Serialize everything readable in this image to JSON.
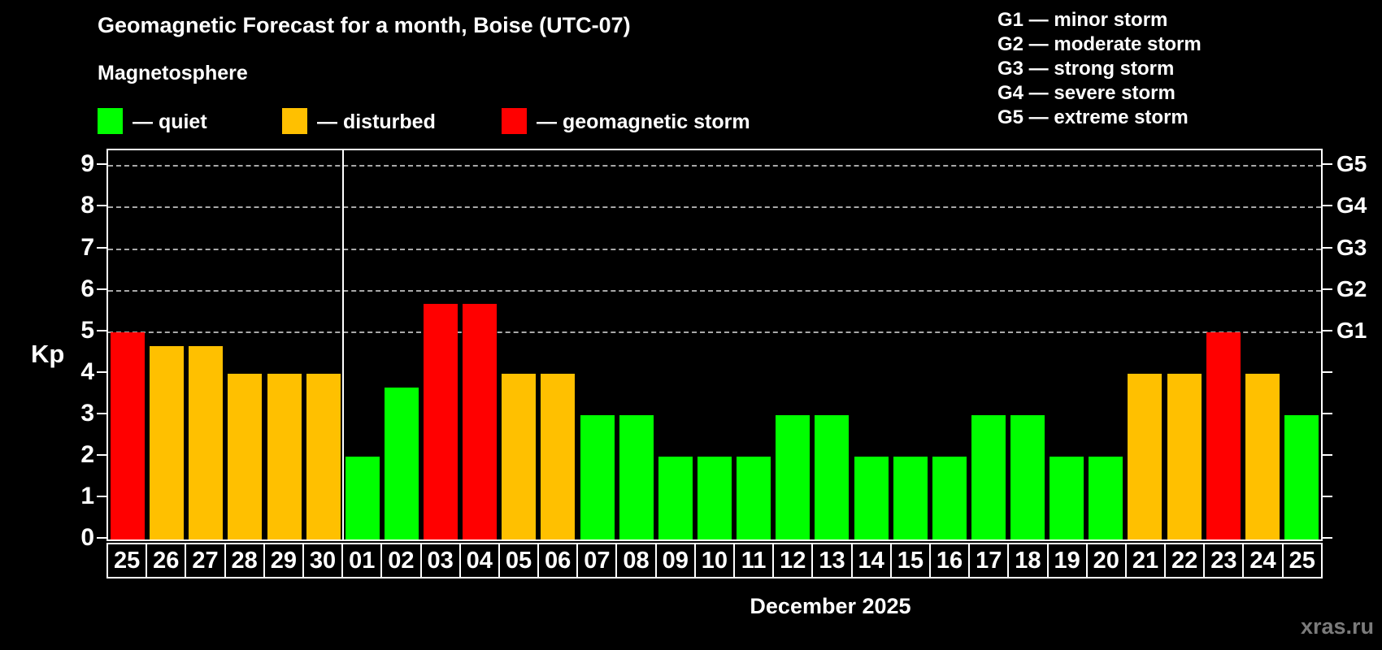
{
  "header": {
    "title": "Geomagnetic Forecast for a month, Boise (UTC-07)",
    "subtitle": "Magnetosphere",
    "watermark": "xras.ru"
  },
  "legend": {
    "items": [
      {
        "name": "quiet",
        "label": "— quiet",
        "color": "#00ff00",
        "x": 120
      },
      {
        "name": "disturbed",
        "label": "— disturbed",
        "color": "#ffc000",
        "x": 347
      },
      {
        "name": "storm",
        "label": "— geomagnetic storm",
        "color": "#ff0000",
        "x": 617
      }
    ]
  },
  "g_scale_legend": {
    "items": [
      "G1 — minor storm",
      "G2 — moderate storm",
      "G3 — strong storm",
      "G4 — severe storm",
      "G5 — extreme storm"
    ]
  },
  "chart_data": {
    "type": "bar",
    "title": "Geomagnetic Forecast for a month, Boise (UTC-07)",
    "xlabel": "December 2025",
    "ylabel": "Kp",
    "ylim": [
      0,
      9.38
    ],
    "yticks": [
      0,
      1,
      2,
      3,
      4,
      5,
      6,
      7,
      8,
      9
    ],
    "gridlines_at": [
      5,
      6,
      7,
      8,
      9
    ],
    "grid": "dashed horizontal at storm levels only",
    "right_axis_labels": [
      {
        "value": 5,
        "label": "G1"
      },
      {
        "value": 6,
        "label": "G2"
      },
      {
        "value": 7,
        "label": "G3"
      },
      {
        "value": 8,
        "label": "G4"
      },
      {
        "value": 9,
        "label": "G5"
      }
    ],
    "month_separator_after_index": 5,
    "categories": [
      "25",
      "26",
      "27",
      "28",
      "29",
      "30",
      "01",
      "02",
      "03",
      "04",
      "05",
      "06",
      "07",
      "08",
      "09",
      "10",
      "11",
      "12",
      "13",
      "14",
      "15",
      "16",
      "17",
      "18",
      "19",
      "20",
      "21",
      "22",
      "23",
      "24",
      "25"
    ],
    "values": [
      5.0,
      4.67,
      4.67,
      4.0,
      4.0,
      4.0,
      2.0,
      3.67,
      5.67,
      5.67,
      4.0,
      4.0,
      3.0,
      3.0,
      2.0,
      2.0,
      2.0,
      3.0,
      3.0,
      2.0,
      2.0,
      2.0,
      3.0,
      3.0,
      2.0,
      2.0,
      4.0,
      4.0,
      5.0,
      4.0,
      3.0
    ],
    "statuses": [
      "storm",
      "disturbed",
      "disturbed",
      "disturbed",
      "disturbed",
      "disturbed",
      "quiet",
      "quiet",
      "storm",
      "storm",
      "disturbed",
      "disturbed",
      "quiet",
      "quiet",
      "quiet",
      "quiet",
      "quiet",
      "quiet",
      "quiet",
      "quiet",
      "quiet",
      "quiet",
      "quiet",
      "quiet",
      "quiet",
      "quiet",
      "disturbed",
      "disturbed",
      "storm",
      "disturbed",
      "quiet"
    ]
  },
  "colors": {
    "quiet": "#00ff00",
    "disturbed": "#ffc000",
    "storm": "#ff0000",
    "background": "#000000",
    "axis": "#ffffff",
    "grid": "#a9a9a9",
    "watermark": "#7b7b7b"
  }
}
